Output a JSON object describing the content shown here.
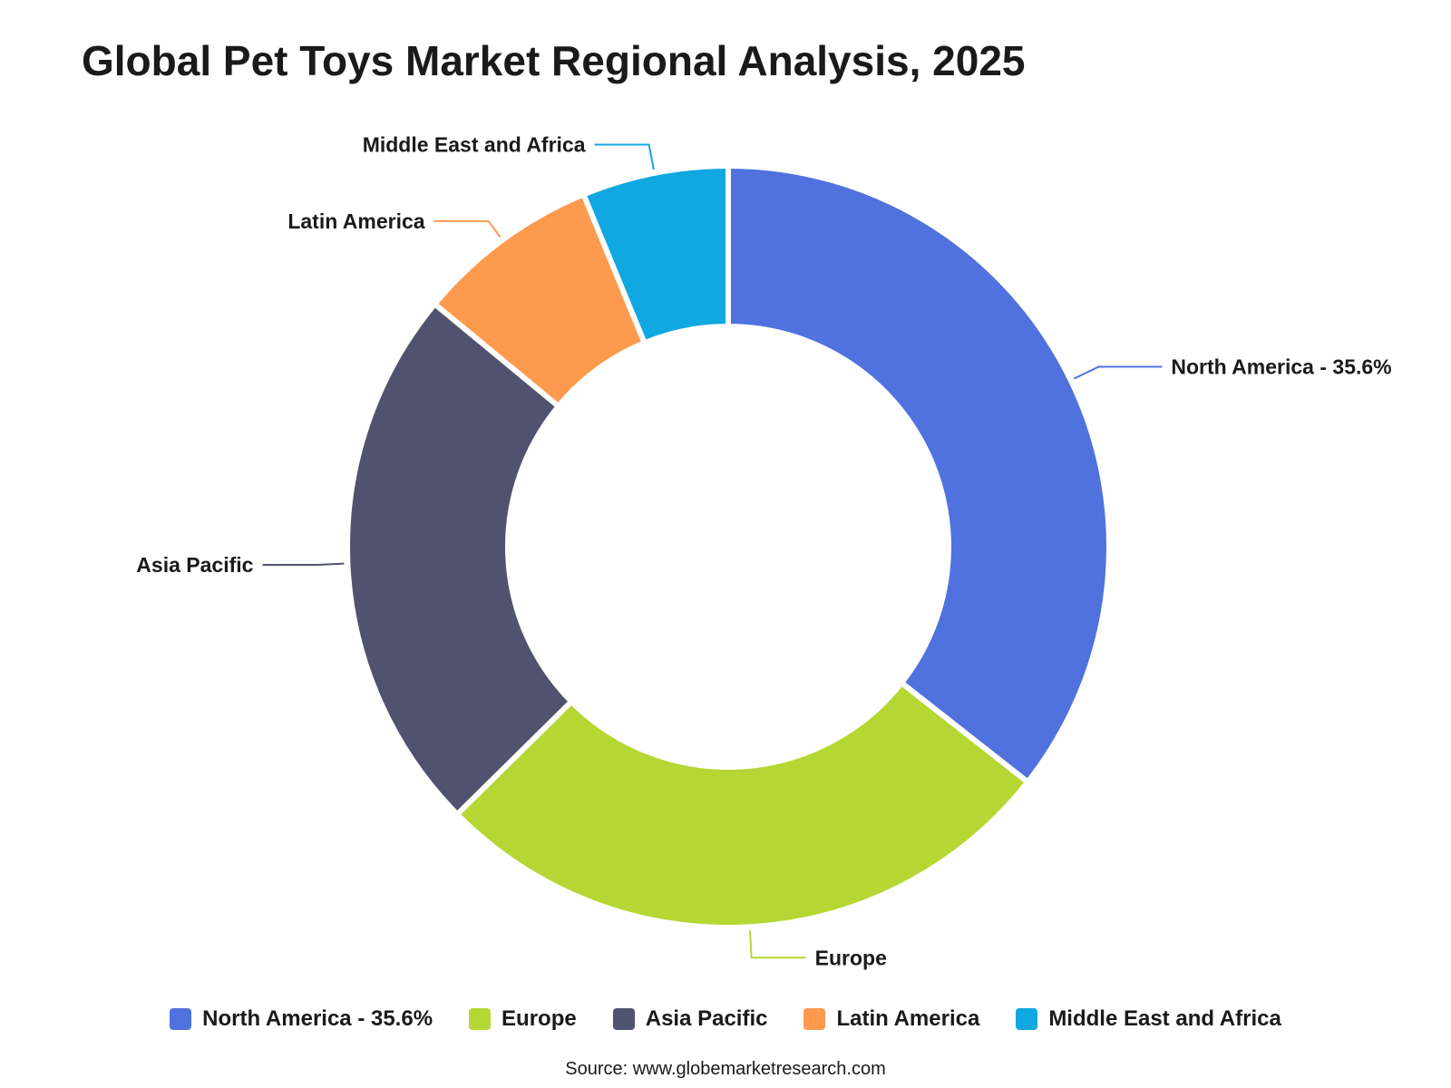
{
  "chart_data": {
    "type": "pie",
    "title": "Global Pet Toys Market Regional Analysis, 2025",
    "categories": [
      "North America",
      "Europe",
      "Asia Pacific",
      "Latin America",
      "Middle East and Africa"
    ],
    "labels": [
      "North America - 35.6%",
      "Europe",
      "Asia Pacific",
      "Latin America",
      "Middle East and Africa"
    ],
    "values": [
      35.6,
      27.0,
      23.4,
      7.8,
      6.2
    ],
    "colors": [
      "#5072df",
      "#b5d733",
      "#50536f",
      "#fd9a4e",
      "#10a8e0"
    ],
    "donut": true,
    "legend": "bottom",
    "source": "Source: www.globemarketresearch.com"
  }
}
